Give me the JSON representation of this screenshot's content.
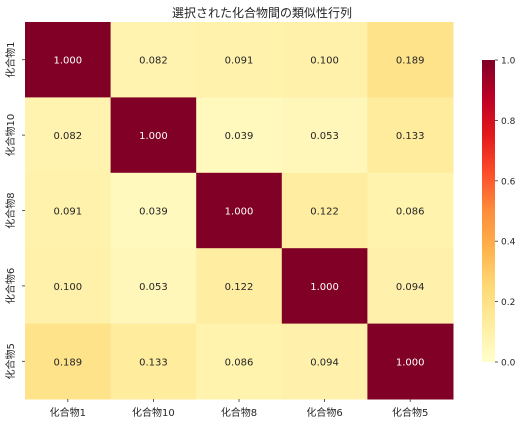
{
  "chart_data": {
    "type": "heatmap",
    "title": "選択された化合物間の類似性行列",
    "rows": [
      "化合物1",
      "化合物10",
      "化合物8",
      "化合物6",
      "化合物5"
    ],
    "columns": [
      "化合物1",
      "化合物10",
      "化合物8",
      "化合物6",
      "化合物5"
    ],
    "values": [
      [
        1.0,
        0.082,
        0.091,
        0.1,
        0.189
      ],
      [
        0.082,
        1.0,
        0.039,
        0.053,
        0.133
      ],
      [
        0.091,
        0.039,
        1.0,
        0.122,
        0.086
      ],
      [
        0.1,
        0.053,
        0.122,
        1.0,
        0.094
      ],
      [
        0.189,
        0.133,
        0.086,
        0.094,
        1.0
      ]
    ],
    "value_format": "0.000",
    "colorbar": {
      "ticks": [
        "0.0",
        "0.2",
        "0.4",
        "0.6",
        "0.8",
        "1.0"
      ],
      "range": [
        0,
        1
      ],
      "colormap": "YlOrRd",
      "stops": [
        "#ffffcc",
        "#ffeda0",
        "#fed976",
        "#feb24c",
        "#fd8d3c",
        "#fc4e2a",
        "#e31a1c",
        "#bd0026",
        "#800026"
      ]
    }
  }
}
